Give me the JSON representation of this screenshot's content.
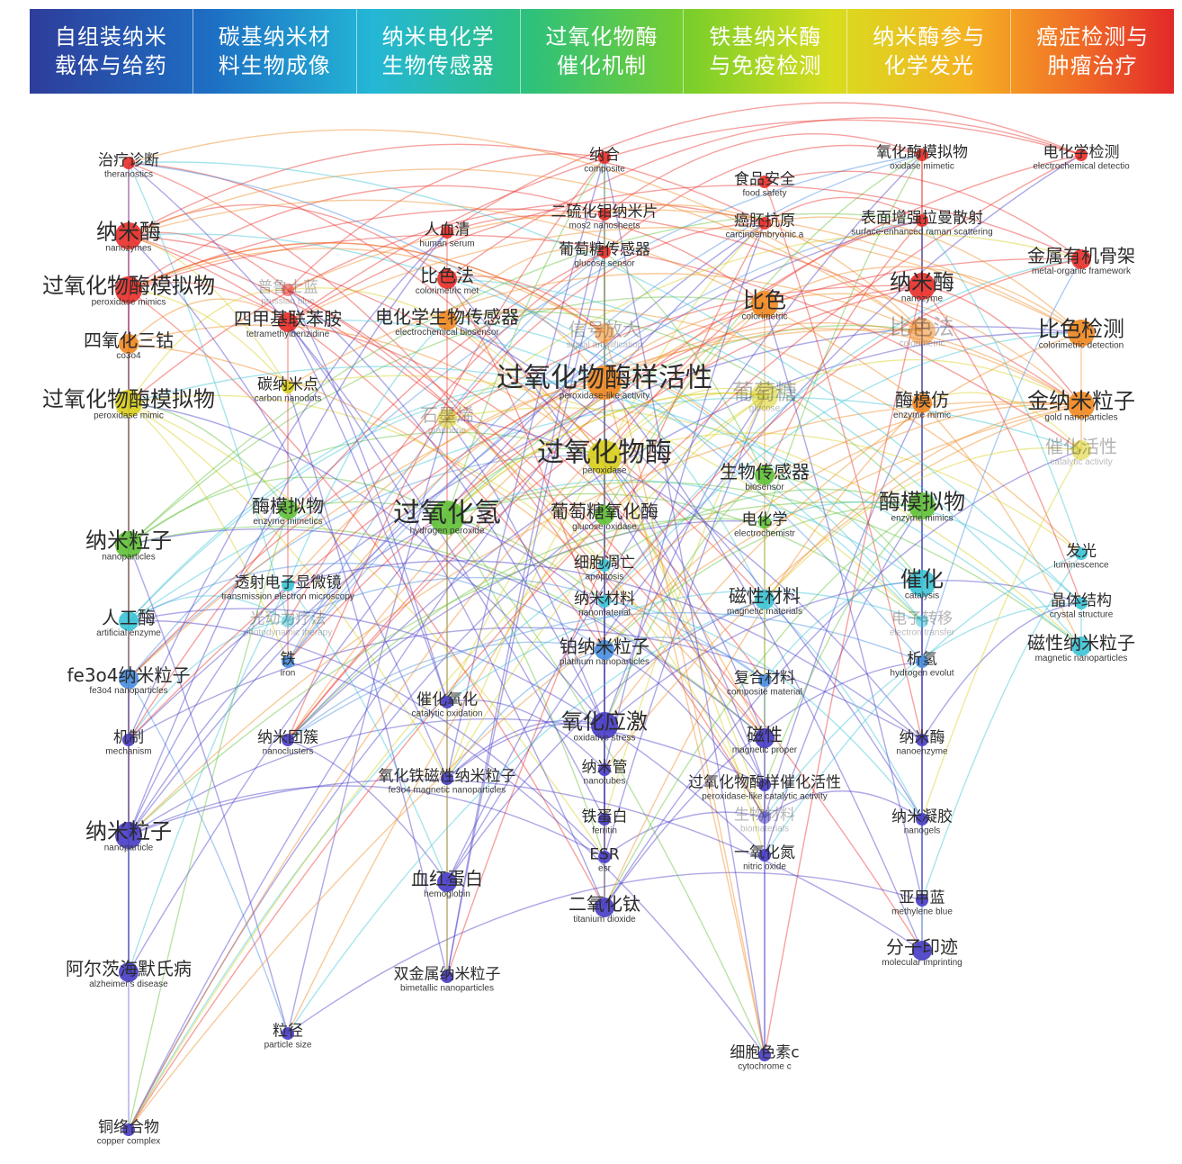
{
  "clusters": [
    {
      "line1": "自组装纳米",
      "line2": "载体与给药"
    },
    {
      "line1": "碳基纳米材",
      "line2": "料生物成像"
    },
    {
      "line1": "纳米电化学",
      "line2": "生物传感器"
    },
    {
      "line1": "过氧化物酶",
      "line2": "催化机制"
    },
    {
      "line1": "铁基纳米酶",
      "line2": "与免疫检测"
    },
    {
      "line1": "纳米酶参与",
      "line2": "化学发光"
    },
    {
      "line1": "癌症检测与",
      "line2": "肿瘤治疗"
    }
  ],
  "colors": {
    "red": "#e8312b",
    "orange": "#f08a24",
    "yellow": "#d9cf1e",
    "green": "#63c23b",
    "cyan": "#3ec4d6",
    "blue": "#4a8fe0",
    "purple": "#4a3fc7"
  },
  "nodes": [
    {
      "zh": "治疗诊断",
      "en": "theranostics",
      "size": "s",
      "color": "red"
    },
    {
      "zh": "纳米酶",
      "en": "nanozymes",
      "size": "l",
      "color": "red"
    },
    {
      "zh": "过氧化物酶模拟物",
      "en": "peroxidase mimics",
      "size": "l",
      "color": "red"
    },
    {
      "zh": "四氧化三钴",
      "en": "co3o4",
      "size": "m",
      "color": "orange"
    },
    {
      "zh": "过氧化物酶模拟物",
      "en": "peroxidase mimic",
      "size": "l",
      "color": "yellow"
    },
    {
      "zh": "纳米粒子",
      "en": "nanoparticles",
      "size": "l",
      "color": "green"
    },
    {
      "zh": "人工酶",
      "en": "artificial enzyme",
      "size": "m",
      "color": "cyan"
    },
    {
      "zh": "fe3o4纳米粒子",
      "en": "fe3o4 nanoparticles",
      "size": "m",
      "color": "blue"
    },
    {
      "zh": "机制",
      "en": "mechanism",
      "size": "s",
      "color": "purple"
    },
    {
      "zh": "纳米粒子",
      "en": "nanoparticle",
      "size": "l",
      "color": "purple"
    },
    {
      "zh": "阿尔茨海默氏病",
      "en": "alzheimer's disease",
      "size": "m",
      "color": "purple"
    },
    {
      "zh": "铜络合物",
      "en": "copper complex",
      "size": "s",
      "color": "purple"
    },
    {
      "zh": "普鲁士蓝",
      "en": "prussian blue",
      "size": "s",
      "color": "red",
      "faint": true
    },
    {
      "zh": "四甲基联苯胺",
      "en": "tetramethylbenzidine",
      "size": "m",
      "color": "red"
    },
    {
      "zh": "碳纳米点",
      "en": "carbon nanodots",
      "size": "s",
      "color": "yellow"
    },
    {
      "zh": "酶模拟物",
      "en": "enzyme mimetics",
      "size": "m",
      "color": "green"
    },
    {
      "zh": "透射电子显微镜",
      "en": "transmission electron microscopy",
      "size": "s",
      "color": "cyan"
    },
    {
      "zh": "光动力疗法",
      "en": "photodynamic therapy",
      "size": "s",
      "color": "cyan",
      "faint": true
    },
    {
      "zh": "铁",
      "en": "iron",
      "size": "s",
      "color": "blue"
    },
    {
      "zh": "纳米团簇",
      "en": "nanoclusters",
      "size": "s",
      "color": "purple"
    },
    {
      "zh": "粒径",
      "en": "particle size",
      "size": "s",
      "color": "purple"
    },
    {
      "zh": "人血清",
      "en": "human serum",
      "size": "s",
      "color": "red"
    },
    {
      "zh": "比色法",
      "en": "colorimetric met",
      "size": "m",
      "color": "red"
    },
    {
      "zh": "电化学生物传感器",
      "en": "electrochemical biosensor",
      "size": "m",
      "color": "orange"
    },
    {
      "zh": "石墨烯",
      "en": "graphene",
      "size": "m",
      "color": "yellow",
      "faint": true
    },
    {
      "zh": "过氧化氢",
      "en": "hydrogen peroxide",
      "size": "xl",
      "color": "green"
    },
    {
      "zh": "催化氧化",
      "en": "catalytic oxidation",
      "size": "s",
      "color": "purple"
    },
    {
      "zh": "氧化铁磁性纳米粒子",
      "en": "fe3o4 magnetic nanoparticles",
      "size": "s",
      "color": "purple"
    },
    {
      "zh": "血红蛋白",
      "en": "hemoglobin",
      "size": "m",
      "color": "purple"
    },
    {
      "zh": "双金属纳米粒子",
      "en": "bimetallic nanoparticles",
      "size": "s",
      "color": "purple"
    },
    {
      "zh": "纳合",
      "en": "composite",
      "size": "s",
      "color": "red"
    },
    {
      "zh": "二硫化钼纳米片",
      "en": "mos2 nanosheets",
      "size": "s",
      "color": "red"
    },
    {
      "zh": "葡萄糖传感器",
      "en": "glucose sensor",
      "size": "s",
      "color": "red"
    },
    {
      "zh": "信号放大",
      "en": "signal amplification",
      "size": "m",
      "color": "orange",
      "faint": true
    },
    {
      "zh": "过氧化物酶样活性",
      "en": "peroxidase-like activity",
      "size": "xl",
      "color": "orange"
    },
    {
      "zh": "过氧化物酶",
      "en": "peroxidase",
      "size": "xl",
      "color": "yellow"
    },
    {
      "zh": "葡萄糖氧化酶",
      "en": "glucose oxidase",
      "size": "m",
      "color": "green"
    },
    {
      "zh": "细胞凋亡",
      "en": "apoptosis",
      "size": "s",
      "color": "cyan"
    },
    {
      "zh": "纳米材料",
      "en": "nanomaterial",
      "size": "s",
      "color": "cyan"
    },
    {
      "zh": "铂纳米粒子",
      "en": "platinum nanoparticles",
      "size": "m",
      "color": "blue"
    },
    {
      "zh": "氧化应激",
      "en": "oxidative stress",
      "size": "l",
      "color": "purple"
    },
    {
      "zh": "纳米管",
      "en": "nanotubes",
      "size": "s",
      "color": "purple"
    },
    {
      "zh": "铁蛋白",
      "en": "ferritin",
      "size": "s",
      "color": "purple"
    },
    {
      "zh": "ESR",
      "en": "esr",
      "size": "s",
      "color": "purple"
    },
    {
      "zh": "二氧化钛",
      "en": "titanium dioxide",
      "size": "m",
      "color": "purple"
    },
    {
      "zh": "食品安全",
      "en": "food safety",
      "size": "s",
      "color": "red"
    },
    {
      "zh": "癌胚抗原",
      "en": "carcinoembryonic a",
      "size": "s",
      "color": "red"
    },
    {
      "zh": "比色",
      "en": "colorimetric",
      "size": "l",
      "color": "orange"
    },
    {
      "zh": "葡萄糖",
      "en": "glucose",
      "size": "l",
      "color": "yellow",
      "faint": true
    },
    {
      "zh": "生物传感器",
      "en": "biosensor",
      "size": "m",
      "color": "green"
    },
    {
      "zh": "电化学",
      "en": "electrochemistr",
      "size": "s",
      "color": "green"
    },
    {
      "zh": "磁性材料",
      "en": "magnetic materials",
      "size": "m",
      "color": "cyan"
    },
    {
      "zh": "复合材料",
      "en": "composite material",
      "size": "s",
      "color": "blue"
    },
    {
      "zh": "磁性",
      "en": "magnetic proper",
      "size": "m",
      "color": "purple"
    },
    {
      "zh": "过氧化物酶样催化活性",
      "en": "peroxidase-like catalytic activity",
      "size": "s",
      "color": "purple"
    },
    {
      "zh": "生物材料",
      "en": "biomaterials",
      "size": "s",
      "color": "purple",
      "faint": true
    },
    {
      "zh": "一氧化氮",
      "en": "nitric oxide",
      "size": "s",
      "color": "purple"
    },
    {
      "zh": "细胞色素c",
      "en": "cytochrome c",
      "size": "s",
      "color": "purple"
    },
    {
      "zh": "氧化酶模拟物",
      "en": "oxidase mimetic",
      "size": "s",
      "color": "red"
    },
    {
      "zh": "表面增强拉曼散射",
      "en": "surface-enhanced raman scattering",
      "size": "s",
      "color": "red"
    },
    {
      "zh": "纳米酶",
      "en": "nanozyme",
      "size": "l",
      "color": "red"
    },
    {
      "zh": "比色法",
      "en": "colorimetric",
      "size": "l",
      "color": "orange",
      "faint": true
    },
    {
      "zh": "酶模仿",
      "en": "enzyme mimic",
      "size": "m",
      "color": "orange"
    },
    {
      "zh": "酶模拟物",
      "en": "enzyme mimics",
      "size": "l",
      "color": "green"
    },
    {
      "zh": "催化",
      "en": "catalysis",
      "size": "l",
      "color": "cyan"
    },
    {
      "zh": "电子转移",
      "en": "electron transfer",
      "size": "s",
      "color": "cyan",
      "faint": true
    },
    {
      "zh": "析氢",
      "en": "hydrogen evolut",
      "size": "s",
      "color": "blue"
    },
    {
      "zh": "纳米酶",
      "en": "nanoenzyme",
      "size": "s",
      "color": "purple"
    },
    {
      "zh": "纳米凝胶",
      "en": "nanogels",
      "size": "s",
      "color": "purple"
    },
    {
      "zh": "亚甲蓝",
      "en": "methylene blue",
      "size": "s",
      "color": "purple"
    },
    {
      "zh": "分子印迹",
      "en": "molecular imprinting",
      "size": "m",
      "color": "purple"
    },
    {
      "zh": "电化学检测",
      "en": "electrochemical detectio",
      "size": "s",
      "color": "red"
    },
    {
      "zh": "金属有机骨架",
      "en": "metal-organic framework",
      "size": "m",
      "color": "red"
    },
    {
      "zh": "比色检测",
      "en": "colorimetric detection",
      "size": "l",
      "color": "orange"
    },
    {
      "zh": "金纳米粒子",
      "en": "gold nanoparticles",
      "size": "l",
      "color": "orange"
    },
    {
      "zh": "催化活性",
      "en": "catalytic activity",
      "size": "m",
      "color": "yellow",
      "faint": true
    },
    {
      "zh": "发光",
      "en": "luminescence",
      "size": "s",
      "color": "cyan"
    },
    {
      "zh": "晶体结构",
      "en": "crystal structure",
      "size": "s",
      "color": "cyan"
    },
    {
      "zh": "磁性纳米粒子",
      "en": "magnetic nanoparticles",
      "size": "m",
      "color": "cyan"
    }
  ]
}
